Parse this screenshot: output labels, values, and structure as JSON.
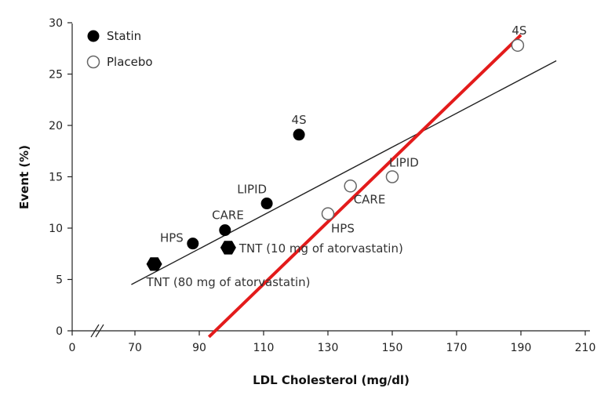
{
  "chart_data": {
    "type": "scatter",
    "xlabel": "LDL Cholesterol (mg/dl)",
    "ylabel": "Event (%)",
    "xlim": [
      0,
      210
    ],
    "ylim": [
      0,
      30
    ],
    "x_ticks": [
      0,
      70,
      90,
      110,
      130,
      150,
      170,
      190,
      210
    ],
    "y_ticks": [
      0,
      5,
      10,
      15,
      20,
      25,
      30
    ],
    "axis_break": "x between 0 and 70",
    "grid": false,
    "legend": {
      "position": "top-left",
      "entries": [
        {
          "name": "Statin",
          "marker": "filled-circle"
        },
        {
          "name": "Placebo",
          "marker": "open-circle"
        }
      ]
    },
    "series": [
      {
        "name": "Statin",
        "marker": "filled-circle",
        "color": "#000000",
        "points": [
          {
            "x": 121,
            "y": 19.1,
            "label": "4S"
          },
          {
            "x": 111,
            "y": 12.4,
            "label": "LIPID"
          },
          {
            "x": 98,
            "y": 9.8,
            "label": "CARE"
          },
          {
            "x": 88,
            "y": 8.5,
            "label": "HPS"
          },
          {
            "x": 99,
            "y": 8.1,
            "label": "TNT (10 mg of atorvastatin)",
            "marker": "filled-hexagon"
          },
          {
            "x": 76,
            "y": 6.5,
            "label": "TNT (80 mg of atorvastatin)",
            "marker": "filled-hexagon"
          }
        ]
      },
      {
        "name": "Placebo",
        "marker": "open-circle",
        "color": "#666666",
        "points": [
          {
            "x": 189,
            "y": 27.8,
            "label": "4S"
          },
          {
            "x": 150,
            "y": 15.0,
            "label": "LIPID"
          },
          {
            "x": 137,
            "y": 14.1,
            "label": "CARE"
          },
          {
            "x": 130,
            "y": 11.4,
            "label": "HPS"
          }
        ]
      }
    ],
    "lines": [
      {
        "kind": "regression",
        "color": "#222222",
        "from": [
          66,
          4.5
        ],
        "to": [
          201,
          26.3
        ]
      },
      {
        "kind": "overlay",
        "color": "#e31b1b",
        "from": [
          93,
          -0.6
        ],
        "to": [
          190,
          28.8
        ]
      }
    ]
  }
}
